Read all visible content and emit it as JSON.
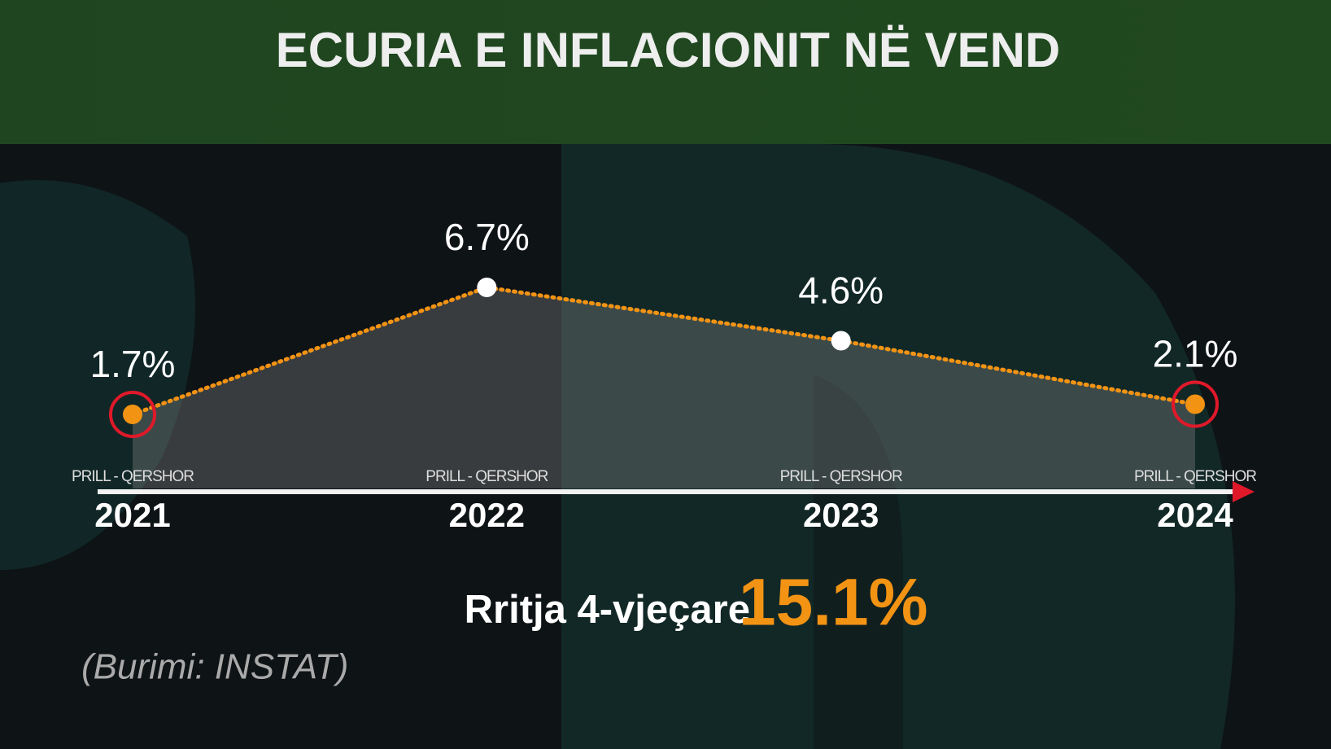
{
  "chart_data": {
    "type": "line",
    "title": "ECURIA E INFLACIONIT NË VEND",
    "categories": [
      "2021",
      "2022",
      "2023",
      "2024"
    ],
    "period_labels": [
      "PRILL - QERSHOR",
      "PRILL - QERSHOR",
      "PRILL - QERSHOR",
      "PRILL - QERSHOR"
    ],
    "values": [
      1.7,
      6.7,
      4.6,
      2.1
    ],
    "value_labels": [
      "1.7%",
      "6.7%",
      "4.6%",
      "2.1%"
    ],
    "color": "#f39314",
    "marker_colors": [
      "#f39314",
      "#ffffff",
      "#ffffff",
      "#f39314"
    ],
    "highlight_color": "#e0192a",
    "highlighted": [
      true,
      false,
      false,
      true
    ],
    "summary": {
      "text": "Rritja 4-vjeçare",
      "value": 15.1,
      "value_label": "15.1%",
      "color": "#f39314"
    },
    "source": "(Burimi: INSTAT)"
  }
}
